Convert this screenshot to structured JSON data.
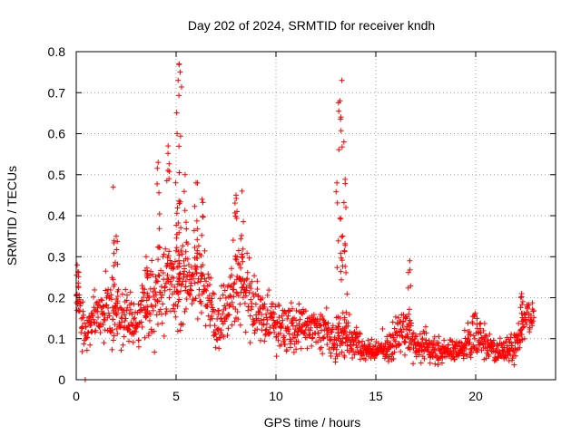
{
  "chart_data": {
    "type": "scatter",
    "title": "Day 202 of 2024, SRMTID for receiver kndh",
    "xlabel": "GPS time / hours",
    "ylabel": "SRMTID / TECUs",
    "xlim": [
      0,
      24
    ],
    "ylim": [
      0,
      0.8
    ],
    "x_ticks": [
      0,
      5,
      10,
      15,
      20
    ],
    "x_tick_labels": [
      "0",
      "5",
      "10",
      "15",
      "20"
    ],
    "y_ticks": [
      0,
      0.1,
      0.2,
      0.3,
      0.4,
      0.5,
      0.6,
      0.7,
      0.8
    ],
    "y_tick_labels": [
      "0",
      "0.1",
      "0.2",
      "0.3",
      "0.4",
      "0.5",
      "0.6",
      "0.7",
      "0.8"
    ],
    "grid": true,
    "marker": "+",
    "color": "#ff0000",
    "envelope": {
      "description": "typical SRMTID level per hour (upper/central band of the scatter)",
      "x": [
        0.0,
        0.5,
        1.0,
        1.5,
        2.0,
        2.5,
        3.0,
        3.5,
        4.0,
        4.5,
        5.0,
        5.5,
        6.0,
        6.5,
        7.0,
        7.5,
        8.0,
        8.5,
        9.0,
        9.5,
        10.0,
        10.5,
        11.0,
        11.5,
        12.0,
        12.5,
        13.0,
        13.5,
        14.0,
        14.5,
        15.0,
        15.5,
        16.0,
        16.5,
        17.0,
        17.5,
        18.0,
        18.5,
        19.0,
        19.5,
        20.0,
        20.5,
        21.0,
        21.5,
        22.0,
        22.5,
        23.0
      ],
      "center": [
        0.2,
        0.11,
        0.16,
        0.17,
        0.16,
        0.15,
        0.14,
        0.17,
        0.21,
        0.24,
        0.22,
        0.24,
        0.26,
        0.22,
        0.13,
        0.16,
        0.24,
        0.22,
        0.16,
        0.14,
        0.13,
        0.12,
        0.13,
        0.13,
        0.13,
        0.12,
        0.1,
        0.1,
        0.09,
        0.07,
        0.07,
        0.08,
        0.1,
        0.12,
        0.08,
        0.08,
        0.07,
        0.07,
        0.07,
        0.08,
        0.11,
        0.09,
        0.07,
        0.07,
        0.08,
        0.15,
        0.15
      ],
      "spread": [
        0.06,
        0.03,
        0.05,
        0.06,
        0.06,
        0.05,
        0.05,
        0.06,
        0.08,
        0.09,
        0.09,
        0.08,
        0.08,
        0.07,
        0.05,
        0.06,
        0.08,
        0.07,
        0.05,
        0.05,
        0.04,
        0.04,
        0.04,
        0.04,
        0.04,
        0.04,
        0.04,
        0.04,
        0.03,
        0.02,
        0.02,
        0.03,
        0.04,
        0.04,
        0.03,
        0.03,
        0.02,
        0.02,
        0.02,
        0.03,
        0.04,
        0.03,
        0.02,
        0.02,
        0.03,
        0.04,
        0.03
      ]
    },
    "peaks": [
      {
        "x": 0.05,
        "y": 0.28
      },
      {
        "x": 0.45,
        "y": 0.0
      },
      {
        "x": 1.85,
        "y": 0.47
      },
      {
        "x": 2.0,
        "y": 0.35
      },
      {
        "x": 3.5,
        "y": 0.3
      },
      {
        "x": 4.1,
        "y": 0.53
      },
      {
        "x": 4.6,
        "y": 0.57
      },
      {
        "x": 5.05,
        "y": 0.6
      },
      {
        "x": 5.1,
        "y": 0.73
      },
      {
        "x": 5.15,
        "y": 0.77
      },
      {
        "x": 5.2,
        "y": 0.75
      },
      {
        "x": 5.45,
        "y": 0.5
      },
      {
        "x": 6.0,
        "y": 0.48
      },
      {
        "x": 6.3,
        "y": 0.44
      },
      {
        "x": 8.0,
        "y": 0.45
      },
      {
        "x": 8.3,
        "y": 0.46
      },
      {
        "x": 13.05,
        "y": 0.48
      },
      {
        "x": 13.2,
        "y": 0.68
      },
      {
        "x": 13.3,
        "y": 0.73
      },
      {
        "x": 13.4,
        "y": 0.58
      },
      {
        "x": 13.5,
        "y": 0.42
      },
      {
        "x": 16.7,
        "y": 0.29
      },
      {
        "x": 22.3,
        "y": 0.21
      }
    ],
    "x_range_observed": [
      0.0,
      22.9
    ]
  }
}
